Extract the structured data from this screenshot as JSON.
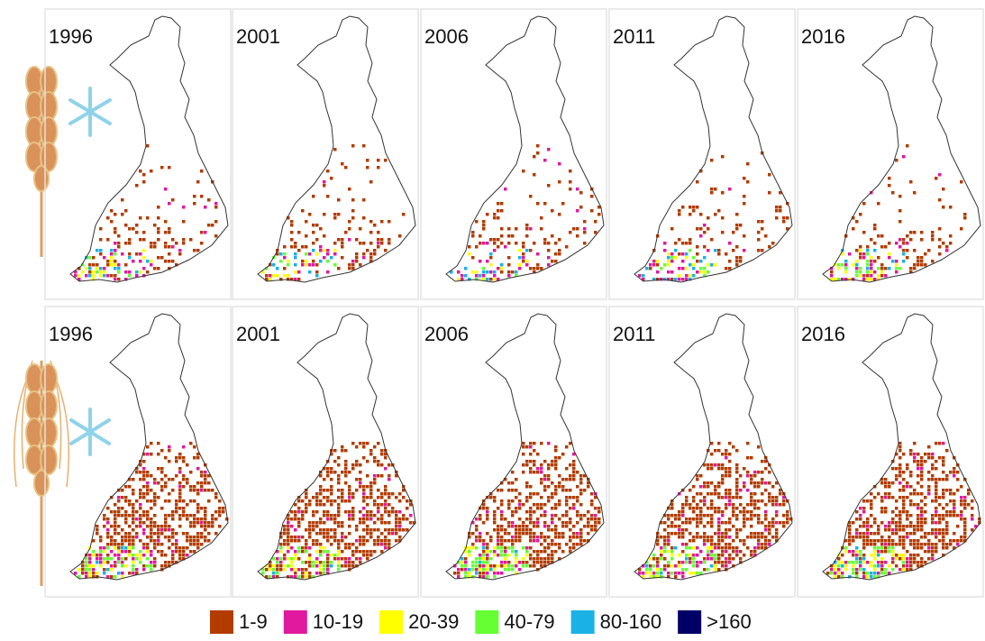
{
  "rows": [
    {
      "panels": [
        {
          "year": "1996"
        },
        {
          "year": "2001"
        },
        {
          "year": "2006"
        },
        {
          "year": "2011"
        },
        {
          "year": "2016"
        }
      ]
    },
    {
      "panels": [
        {
          "year": "1996"
        },
        {
          "year": "2001"
        },
        {
          "year": "2006"
        },
        {
          "year": "2011"
        },
        {
          "year": "2016"
        }
      ]
    }
  ],
  "legend": [
    {
      "label": "1-9",
      "color": "#b23c00"
    },
    {
      "label": "10-19",
      "color": "#e0199e"
    },
    {
      "label": "20-39",
      "color": "#ffff00"
    },
    {
      "label": "40-79",
      "color": "#66ff33"
    },
    {
      "label": "80-160",
      "color": "#1ab2e6"
    },
    {
      "label": ">160",
      "color": "#000066"
    }
  ]
}
